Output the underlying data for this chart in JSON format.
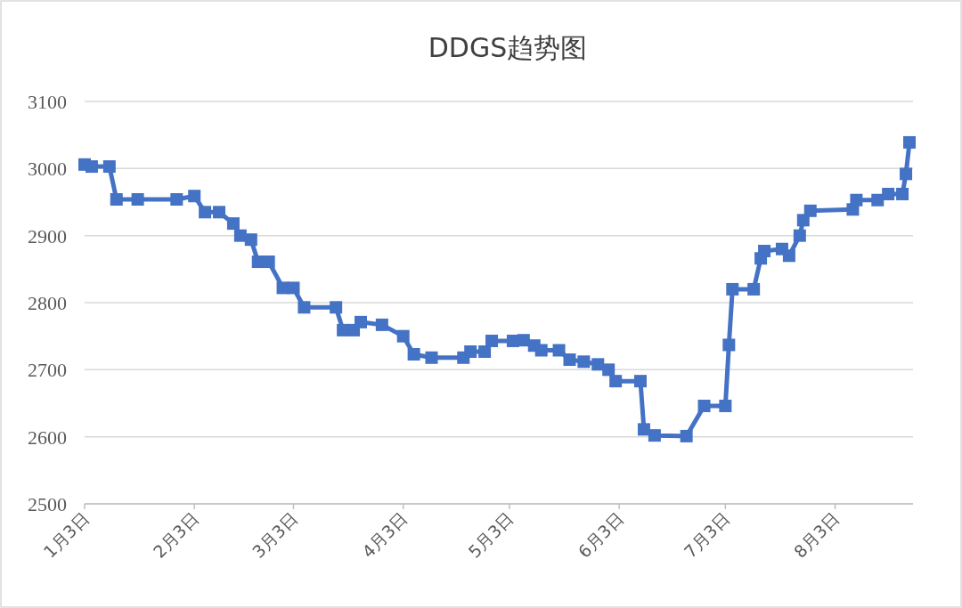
{
  "chart_data": {
    "type": "line",
    "title": "DDGS趋势图",
    "x": [
      "--01-03",
      "--01-05",
      "--01-10",
      "--01-12",
      "--01-18",
      "--01-29",
      "--02-03",
      "--02-06",
      "--02-10",
      "--02-14",
      "--02-16",
      "--02-19",
      "--02-21",
      "--02-24",
      "--02-28",
      "--03-03",
      "--03-06",
      "--03-15",
      "--03-17",
      "--03-20",
      "--03-22",
      "--03-28",
      "--04-03",
      "--04-06",
      "--04-11",
      "--04-20",
      "--04-22",
      "--04-26",
      "--04-28",
      "--05-04",
      "--05-07",
      "--05-10",
      "--05-12",
      "--05-17",
      "--05-20",
      "--05-24",
      "--05-28",
      "--05-31",
      "--06-02",
      "--06-09",
      "--06-10",
      "--06-13",
      "--06-22",
      "--06-27",
      "--07-03",
      "--07-04",
      "--07-05",
      "--07-11",
      "--07-13",
      "--07-14",
      "--07-19",
      "--07-21",
      "--07-24",
      "--07-25",
      "--07-27",
      "--08-08",
      "--08-09",
      "--08-15",
      "--08-18",
      "--08-22",
      "--08-23",
      "--08-24"
    ],
    "values": [
      3006,
      3003,
      3003,
      2954,
      2954,
      2954,
      2959,
      2935,
      2935,
      2918,
      2900,
      2894,
      2861,
      2861,
      2822,
      2822,
      2793,
      2793,
      2759,
      2759,
      2771,
      2767,
      2750,
      2723,
      2718,
      2718,
      2727,
      2727,
      2743,
      2743,
      2744,
      2736,
      2729,
      2729,
      2715,
      2712,
      2708,
      2700,
      2683,
      2683,
      2611,
      2602,
      2601,
      2646,
      2646,
      2737,
      2820,
      2820,
      2866,
      2877,
      2880,
      2870,
      2900,
      2923,
      2937,
      2939,
      2953,
      2953,
      2962,
      2962,
      2992,
      3039
    ],
    "color": "#4472c4",
    "marker": "square",
    "line_style": "solid",
    "grid": "y",
    "ylim": [
      2500,
      3100
    ],
    "yticks": [
      2500,
      2600,
      2700,
      2800,
      2900,
      3000,
      3100
    ],
    "xlim": [
      "--01-03",
      "--08-25"
    ],
    "xticks": [
      {
        "value": "--01-03",
        "label": "1月3日"
      },
      {
        "value": "--02-03",
        "label": "2月3日"
      },
      {
        "value": "--03-03",
        "label": "3月3日"
      },
      {
        "value": "--04-03",
        "label": "4月3日"
      },
      {
        "value": "--05-03",
        "label": "5月3日"
      },
      {
        "value": "--06-03",
        "label": "6月3日"
      },
      {
        "value": "--07-03",
        "label": "7月3日"
      },
      {
        "value": "--08-03",
        "label": "8月3日"
      }
    ]
  }
}
